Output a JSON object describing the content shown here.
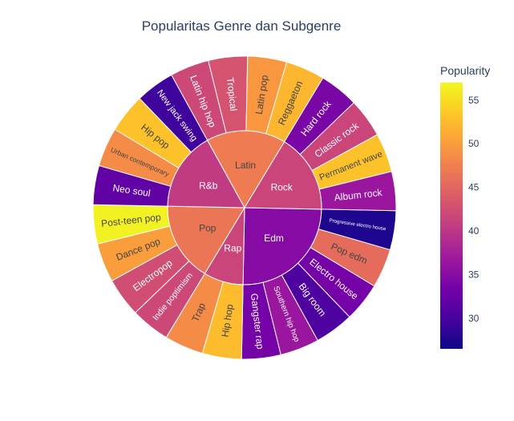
{
  "chart_data": {
    "type": "sunburst",
    "title": "Popularitas Genre dan Subgenre",
    "colorbar": {
      "title": "Popularity",
      "min": 26.5,
      "max": 57,
      "ticks": [
        30,
        35,
        40,
        45,
        50,
        55
      ],
      "colorscale": [
        "#0d0887",
        "#46039f",
        "#7201a8",
        "#9c179e",
        "#bd3786",
        "#d8576b",
        "#ed7953",
        "#fb9f3a",
        "#fdca26",
        "#f0f921"
      ]
    },
    "genres": [
      {
        "name": "Edm",
        "popularity": 34.8,
        "subgenres": [
          {
            "name": "Progressive electro house",
            "popularity": 27.5
          },
          {
            "name": "Pop edm",
            "popularity": 45.5
          },
          {
            "name": "Electro house",
            "popularity": 33.5
          },
          {
            "name": "Big room",
            "popularity": 30.5
          },
          {
            "name": "Southern hip hop",
            "popularity": 36.5
          },
          {
            "name": "Gangster rap",
            "popularity": 33.5
          }
        ]
      },
      {
        "name": "Rap",
        "popularity": 41.5,
        "subgenres": [
          {
            "name": "Hip hop",
            "popularity": 52.5
          },
          {
            "name": "Trap",
            "popularity": 48.5
          }
        ]
      },
      {
        "name": "Pop",
        "popularity": 46.5,
        "subgenres": [
          {
            "name": "Indie poptimism",
            "popularity": 42
          },
          {
            "name": "Electropop",
            "popularity": 42.5
          },
          {
            "name": "Dance pop",
            "popularity": 50
          },
          {
            "name": "Post-teen pop",
            "popularity": 56.5
          }
        ]
      },
      {
        "name": "R&b",
        "popularity": 40.5,
        "subgenres": [
          {
            "name": "Neo soul",
            "popularity": 32
          },
          {
            "name": "Urban contemporary",
            "popularity": 48.5
          },
          {
            "name": "Hip pop",
            "popularity": 53
          },
          {
            "name": "New jack swing",
            "popularity": 29.5
          }
        ]
      },
      {
        "name": "Latin",
        "popularity": 47,
        "subgenres": [
          {
            "name": "Latin hip hop",
            "popularity": 42
          },
          {
            "name": "Tropical",
            "popularity": 43
          },
          {
            "name": "Latin pop",
            "popularity": 49.5
          },
          {
            "name": "Reggaeton",
            "popularity": 52
          }
        ]
      },
      {
        "name": "Rock",
        "popularity": 41.5,
        "subgenres": [
          {
            "name": "Hard rock",
            "popularity": 34
          },
          {
            "name": "Classic rock",
            "popularity": 41.5
          },
          {
            "name": "Permanent wave",
            "popularity": 53
          },
          {
            "name": "Album rock",
            "popularity": 36.5
          }
        ]
      }
    ]
  }
}
